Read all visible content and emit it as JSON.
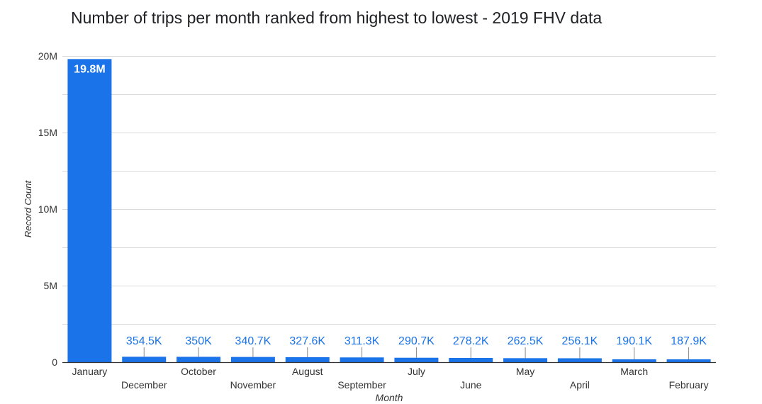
{
  "chart_data": {
    "type": "bar",
    "title": "Number of trips per month ranked from highest to lowest - 2019 FHV data",
    "xlabel": "Month",
    "ylabel": "Record Count",
    "ylim": [
      0,
      20000000
    ],
    "yticks": [
      0,
      5000000,
      10000000,
      15000000,
      20000000
    ],
    "ytick_labels": [
      "0",
      "5M",
      "10M",
      "15M",
      "20M"
    ],
    "categories": [
      "January",
      "December",
      "October",
      "November",
      "August",
      "September",
      "July",
      "June",
      "May",
      "April",
      "March",
      "February"
    ],
    "values": [
      19800000,
      354500,
      350000,
      340700,
      327600,
      311300,
      290700,
      278200,
      262500,
      256100,
      190100,
      187900
    ],
    "data_labels": [
      "19.8M",
      "354.5K",
      "350K",
      "340.7K",
      "327.6K",
      "311.3K",
      "290.7K",
      "278.2K",
      "262.5K",
      "256.1K",
      "190.1K",
      "187.9K"
    ],
    "grid": true,
    "bar_color": "#1a73e8",
    "label_color": "#1a73e8",
    "inside_label_color": "#ffffff"
  }
}
